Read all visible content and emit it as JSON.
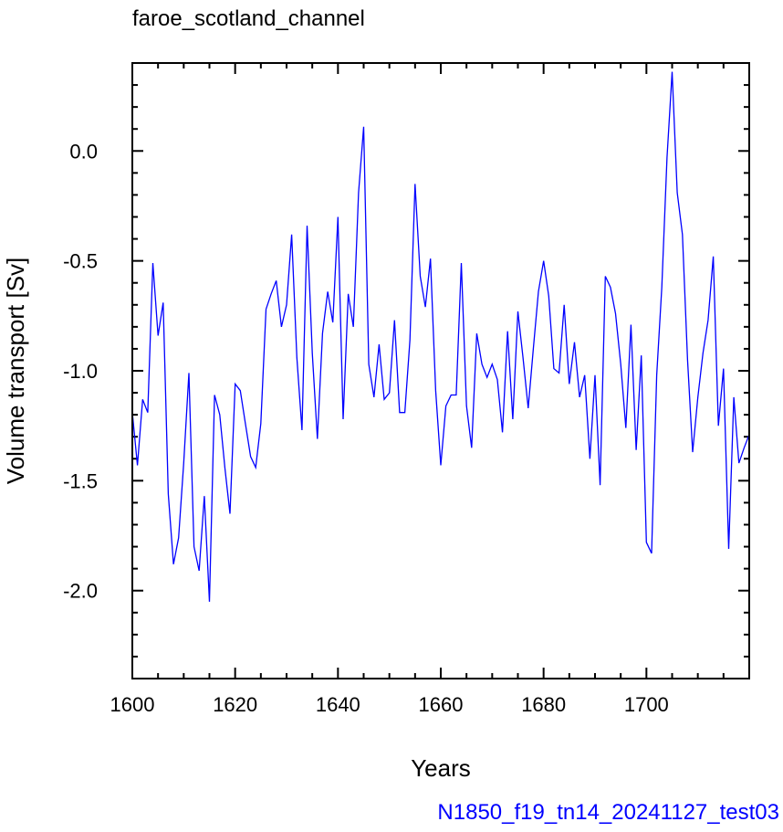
{
  "chart_data": {
    "type": "line",
    "title": "faroe_scotland_channel",
    "xlabel": "Years",
    "ylabel": "Volume transport [Sv]",
    "case_label": "N1850_f19_tn14_20241127_test03",
    "xlim": [
      1600,
      1720
    ],
    "ylim": [
      -2.4,
      0.4
    ],
    "xticks": [
      1600,
      1620,
      1640,
      1660,
      1680,
      1700
    ],
    "xtick_labels": [
      "1600",
      "1620",
      "1640",
      "1660",
      "1680",
      "1700"
    ],
    "yticks": [
      -2.0,
      -1.5,
      -1.0,
      -0.5,
      0.0
    ],
    "ytick_labels": [
      "-2.0",
      "-1.5",
      "-1.0",
      "-0.5",
      "0.0"
    ],
    "grid": false,
    "series": [
      {
        "color": "#0000ff",
        "x": [
          1600,
          1601,
          1602,
          1603,
          1604,
          1605,
          1606,
          1607,
          1608,
          1609,
          1610,
          1611,
          1612,
          1613,
          1614,
          1615,
          1616,
          1617,
          1618,
          1619,
          1620,
          1621,
          1622,
          1623,
          1624,
          1625,
          1626,
          1627,
          1628,
          1629,
          1630,
          1631,
          1632,
          1633,
          1634,
          1635,
          1636,
          1637,
          1638,
          1639,
          1640,
          1641,
          1642,
          1643,
          1644,
          1645,
          1646,
          1647,
          1648,
          1649,
          1650,
          1651,
          1652,
          1653,
          1654,
          1655,
          1656,
          1657,
          1658,
          1659,
          1660,
          1661,
          1662,
          1663,
          1664,
          1665,
          1666,
          1667,
          1668,
          1669,
          1670,
          1671,
          1672,
          1673,
          1674,
          1675,
          1676,
          1677,
          1678,
          1679,
          1680,
          1681,
          1682,
          1683,
          1684,
          1685,
          1686,
          1687,
          1688,
          1689,
          1690,
          1691,
          1692,
          1693,
          1694,
          1695,
          1696,
          1697,
          1698,
          1699,
          1700,
          1701,
          1702,
          1703,
          1704,
          1705,
          1706,
          1707,
          1708,
          1709,
          1710,
          1711,
          1712,
          1713,
          1714,
          1715,
          1716,
          1717,
          1718,
          1719,
          1720
        ],
        "y": [
          -1.19,
          -1.43,
          -1.13,
          -1.19,
          -0.51,
          -0.84,
          -0.69,
          -1.56,
          -1.88,
          -1.76,
          -1.42,
          -1.01,
          -1.8,
          -1.91,
          -1.57,
          -2.05,
          -1.11,
          -1.2,
          -1.44,
          -1.65,
          -1.06,
          -1.09,
          -1.24,
          -1.39,
          -1.44,
          -1.24,
          -0.72,
          -0.65,
          -0.59,
          -0.8,
          -0.7,
          -0.38,
          -0.94,
          -1.27,
          -0.34,
          -0.92,
          -1.31,
          -0.83,
          -0.64,
          -0.78,
          -0.3,
          -1.22,
          -0.65,
          -0.8,
          -0.19,
          0.11,
          -0.97,
          -1.12,
          -0.88,
          -1.13,
          -1.1,
          -0.77,
          -1.19,
          -1.19,
          -0.86,
          -0.15,
          -0.57,
          -0.71,
          -0.49,
          -1.09,
          -1.43,
          -1.16,
          -1.11,
          -1.11,
          -0.51,
          -1.16,
          -1.35,
          -0.83,
          -0.97,
          -1.03,
          -0.97,
          -1.04,
          -1.28,
          -0.82,
          -1.22,
          -0.73,
          -0.94,
          -1.17,
          -0.9,
          -0.64,
          -0.5,
          -0.66,
          -0.99,
          -1.01,
          -0.7,
          -1.06,
          -0.87,
          -1.12,
          -1.02,
          -1.4,
          -1.02,
          -1.52,
          -0.57,
          -0.62,
          -0.74,
          -0.97,
          -1.26,
          -0.79,
          -1.36,
          -0.93,
          -1.78,
          -1.83,
          -1.02,
          -0.62,
          -0.03,
          0.36,
          -0.19,
          -0.38,
          -0.95,
          -1.37,
          -1.12,
          -0.92,
          -0.77,
          -0.48,
          -1.25,
          -0.99,
          -1.81,
          -1.12,
          -1.42,
          -1.35,
          -1.29
        ]
      }
    ]
  }
}
